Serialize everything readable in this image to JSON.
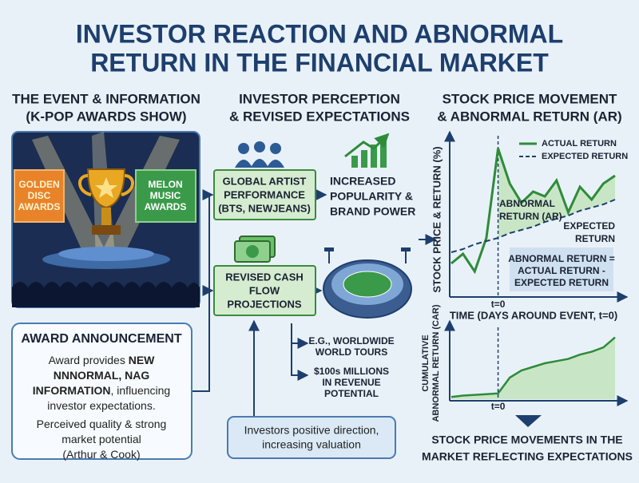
{
  "header": {
    "title": [
      "INVESTOR REACTION AND ABNORMAL",
      "RETURN IN THE FINANCIAL MARKET"
    ]
  },
  "columns": [
    {
      "heading": [
        "THE EVENT & INFORMATION",
        "(K-POP AWARDS SHOW)"
      ]
    },
    {
      "heading": [
        "INVESTOR PERCEPTION",
        "& REVISED EXPECTATIONS"
      ]
    },
    {
      "heading": [
        "STOCK PRICE MOVEMENT",
        "& ABNORMAL RETURN (AR)"
      ]
    }
  ],
  "event": {
    "signs": [
      [
        "GOLDEN",
        "DISC",
        "AWARDS"
      ],
      [
        "MELON",
        "MUSIC",
        "AWARDS"
      ]
    ],
    "announcement": {
      "title": "AWARD ANNOUNCEMENT",
      "body": [
        [
          {
            "text": "Award provides ",
            "bold": false
          },
          {
            "text": "NEW",
            "bold": true
          }
        ],
        [
          {
            "text": "NNNORMAL, NAG",
            "bold": true
          }
        ],
        [
          {
            "text": "INFORMATION",
            "bold": true
          },
          {
            "text": ", influencing",
            "bold": false
          }
        ],
        [
          {
            "text": "investor expectations.",
            "bold": false
          }
        ],
        [
          {
            "text": "Perceived quality & strong",
            "bold": false
          }
        ],
        [
          {
            "text": "market potential",
            "bold": false
          }
        ],
        [
          {
            "text": "(Arthur & Cook)",
            "bold": false
          }
        ]
      ]
    }
  },
  "perception": {
    "nodes": [
      {
        "label": [
          "GLOBAL ARTIST",
          "PERFORMANCE",
          "(BTS, NEWJEANS)"
        ]
      },
      {
        "label": [
          "INCREASED",
          "POPULARITY &",
          "BRAND POWER"
        ]
      },
      {
        "label": [
          "REVISED CASH",
          "FLOW",
          "PROJECTIONS"
        ]
      }
    ],
    "notes": [
      [
        "E.G., WORLDWIDE",
        "WORLD TOURS"
      ],
      [
        "$100s MILLIONS",
        "IN REVENUE",
        "POTENTIAL"
      ]
    ],
    "callout": [
      "Investors positive direction,",
      "increasing valuation"
    ]
  },
  "charts": [
    {
      "type": "line",
      "y_label": "STOCK PRICE & RETURN (%)",
      "x_label": "TIME (DAYS AROUND EVENT, t=0)",
      "event_label": "t=0",
      "event_x": 0,
      "x": [
        -4,
        -3,
        -2,
        -1,
        0,
        1,
        2,
        3,
        4,
        5,
        6,
        7,
        8,
        9,
        10
      ],
      "xlim": [
        -4,
        10
      ],
      "ylim": [
        0,
        100
      ],
      "series": [
        {
          "name": "ACTUAL RETURN",
          "color": "#2e8b3a",
          "values": [
            20,
            26,
            15,
            36,
            92,
            70,
            58,
            65,
            62,
            72,
            52,
            68,
            60,
            70,
            75
          ]
        },
        {
          "name": "EXPECTED RETURN",
          "color": "#1d3f6e",
          "values": [
            27,
            29,
            32,
            34,
            36,
            39,
            41,
            43,
            46,
            48,
            50,
            53,
            55,
            57,
            60
          ]
        }
      ],
      "annotations": {
        "ar": [
          "ABNORMAL",
          "RETURN (AR)"
        ],
        "expected": [
          "EXPECTED",
          "RETURN"
        ],
        "formula": [
          "ABNORMAL RETURN =",
          "ACTUAL RETURN -",
          "EXPECTED RETURN"
        ]
      }
    },
    {
      "type": "area",
      "y_label": [
        "CUMULATIVE",
        "ABNORMAL RETURN (CAR)"
      ],
      "event_label": "t=0",
      "event_x": 0,
      "x": [
        -4,
        -3,
        -2,
        -1,
        0,
        1,
        2,
        3,
        4,
        5,
        6,
        7,
        8,
        9,
        10
      ],
      "xlim": [
        -4,
        10
      ],
      "ylim": [
        0,
        100
      ],
      "color": "#2e8b3a",
      "values": [
        3,
        5,
        6,
        7,
        8,
        30,
        40,
        45,
        50,
        53,
        56,
        62,
        66,
        72,
        86
      ]
    }
  ],
  "footer": [
    "STOCK PRICE MOVEMENTS IN THE",
    "MARKET REFLECTING EXPECTATIONS"
  ]
}
